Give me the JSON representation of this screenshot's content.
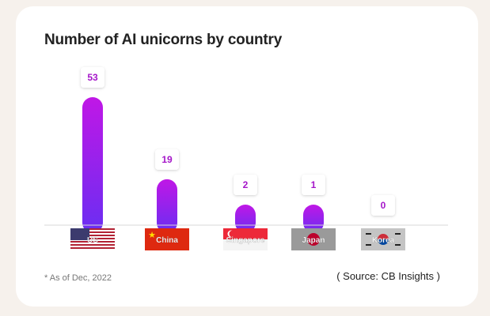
{
  "chart_data": {
    "type": "bar",
    "title": "Number of AI unicorns by country",
    "categories": [
      "US",
      "China",
      "Singapore",
      "Japan",
      "Korea"
    ],
    "values": [
      53,
      19,
      2,
      1,
      0
    ],
    "bar_colors": {
      "top": "#c017e6",
      "bottom": "#6a2ef2"
    },
    "label_color": "#a516c9",
    "footnote": "* As of Dec, 2022",
    "source": "( Source: CB Insights  )"
  },
  "flag_colors": {
    "US": "#b22234",
    "China": "#de2910",
    "Singapore": "#ed2939",
    "Japan": "#9a9a9a",
    "Korea": "#c4c4c4"
  }
}
